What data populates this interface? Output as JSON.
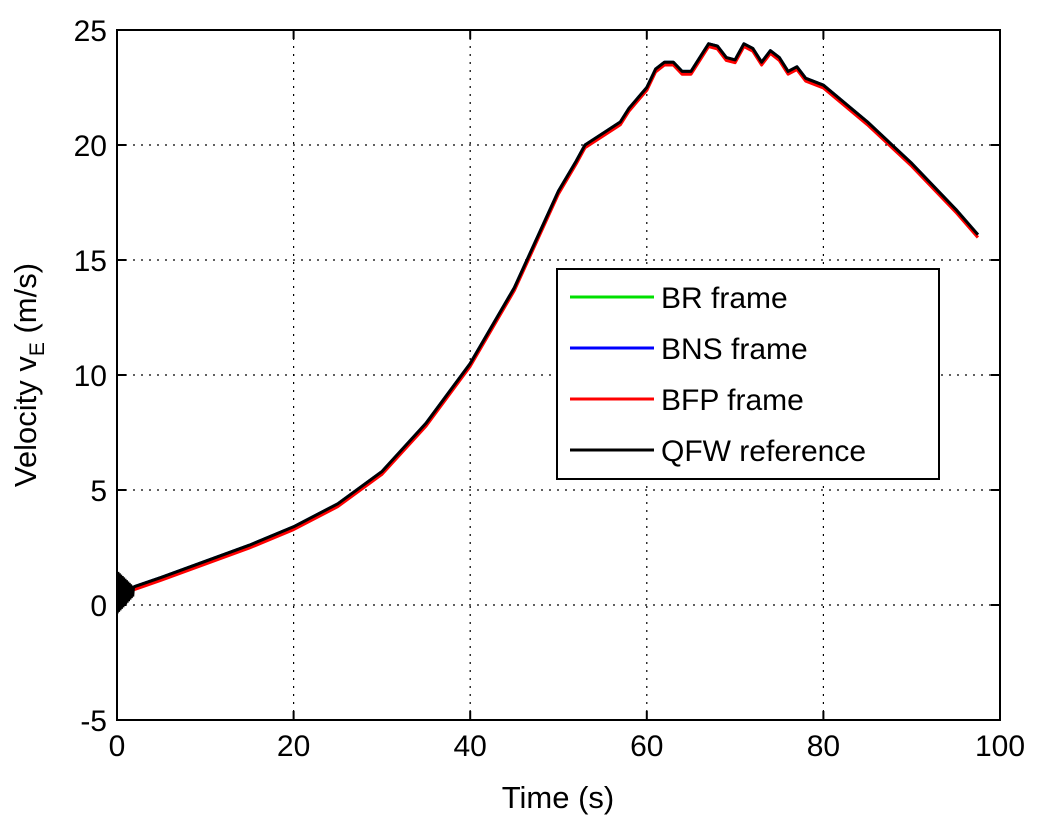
{
  "chart_data": {
    "type": "line",
    "title": "",
    "xlabel": "Time (s)",
    "ylabel": {
      "text": "Velocity v",
      "subscript": "E",
      "unit": " (m/s)"
    },
    "xlim": [
      0,
      100
    ],
    "ylim": [
      -5,
      25
    ],
    "xticks": [
      0,
      20,
      40,
      60,
      80,
      100
    ],
    "yticks": [
      -5,
      0,
      5,
      10,
      15,
      20,
      25
    ],
    "xtick_labels": [
      "0",
      "20",
      "40",
      "60",
      "80",
      "100"
    ],
    "ytick_labels": [
      "-5",
      "0",
      "5",
      "10",
      "15",
      "20",
      "25"
    ],
    "grid": true,
    "legend_position": "right-center",
    "series": [
      {
        "name": "BR frame",
        "color": "#00e000",
        "offset": 0.0
      },
      {
        "name": "BNS frame",
        "color": "#0000ff",
        "offset": 0.0
      },
      {
        "name": "BFP frame",
        "color": "#ff0000",
        "offset": -0.12
      },
      {
        "name": "QFW reference",
        "color": "#000000",
        "offset": 0.0
      }
    ],
    "x": [
      0,
      2,
      5,
      10,
      15,
      20,
      25,
      30,
      35,
      40,
      45,
      50,
      52,
      53,
      55,
      57,
      58,
      60,
      61,
      62,
      63,
      64,
      65,
      66,
      67,
      68,
      69,
      70,
      71,
      72,
      73,
      74,
      75,
      76,
      77,
      78,
      80,
      85,
      90,
      95,
      97.5
    ],
    "values": [
      0.5,
      0.8,
      1.2,
      1.9,
      2.6,
      3.4,
      4.4,
      5.8,
      7.9,
      10.5,
      13.8,
      18.0,
      19.3,
      20.0,
      20.5,
      21.0,
      21.6,
      22.5,
      23.3,
      23.6,
      23.6,
      23.2,
      23.2,
      23.8,
      24.4,
      24.3,
      23.8,
      23.7,
      24.4,
      24.2,
      23.6,
      24.1,
      23.8,
      23.2,
      23.4,
      22.9,
      22.6,
      21.0,
      19.2,
      17.2,
      16.1
    ]
  }
}
